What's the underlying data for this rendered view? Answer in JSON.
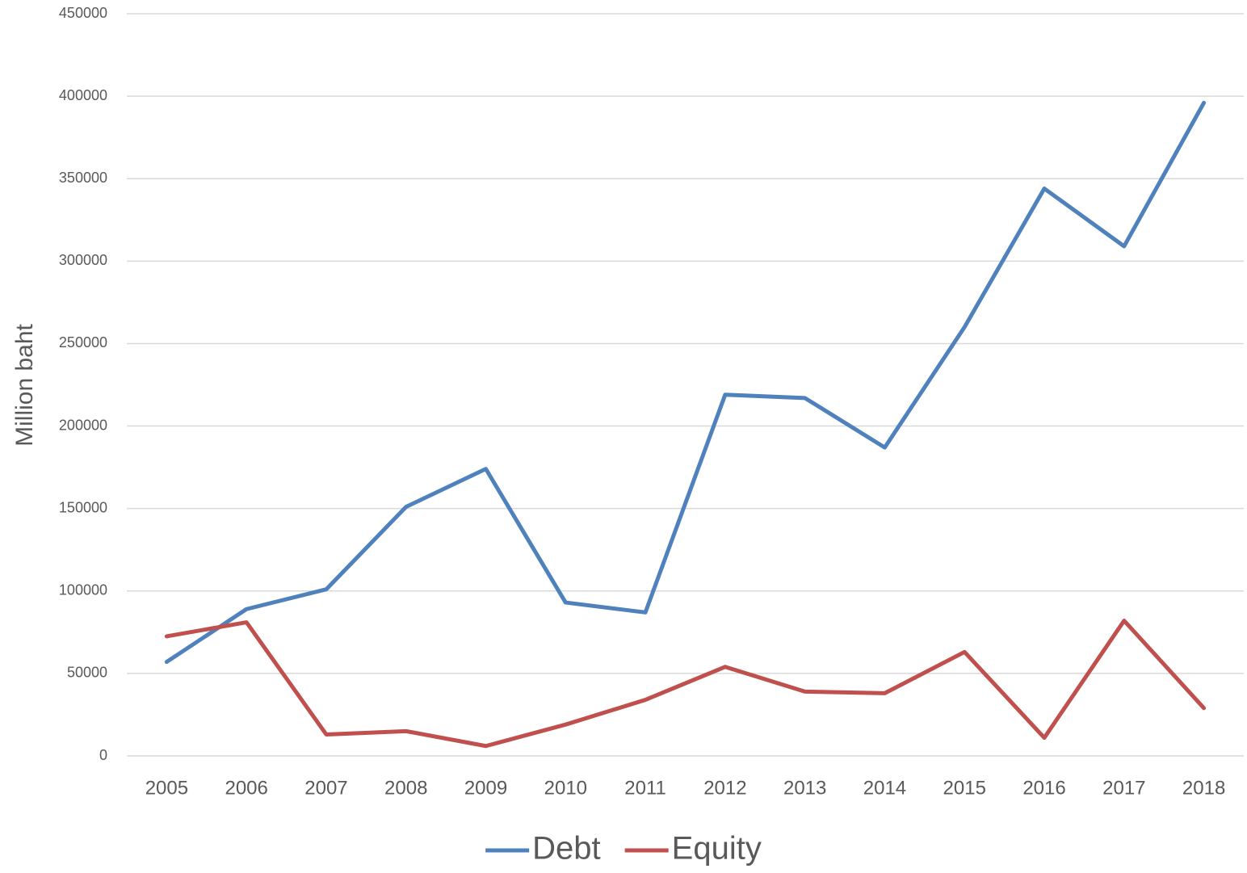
{
  "chart_data": {
    "type": "line",
    "y_label": "Million baht",
    "categories": [
      "2005",
      "2006",
      "2007",
      "2008",
      "2009",
      "2010",
      "2011",
      "2012",
      "2013",
      "2014",
      "2015",
      "2016",
      "2017",
      "2018"
    ],
    "series": [
      {
        "name": "Debt",
        "color": "#4f81bd",
        "values": [
          57000,
          89000,
          101000,
          151000,
          174000,
          93000,
          87000,
          219000,
          217000,
          187000,
          260000,
          344000,
          309000,
          396000
        ]
      },
      {
        "name": "Equity",
        "color": "#c0504d",
        "values": [
          72500,
          81000,
          13000,
          15000,
          6000,
          19000,
          34000,
          54000,
          39000,
          38000,
          63000,
          11000,
          82000,
          29000
        ]
      }
    ],
    "ylim": [
      0,
      450000
    ],
    "yticks": [
      0,
      50000,
      100000,
      150000,
      200000,
      250000,
      300000,
      350000,
      400000,
      450000
    ],
    "grid": true,
    "legend": "bottom"
  }
}
